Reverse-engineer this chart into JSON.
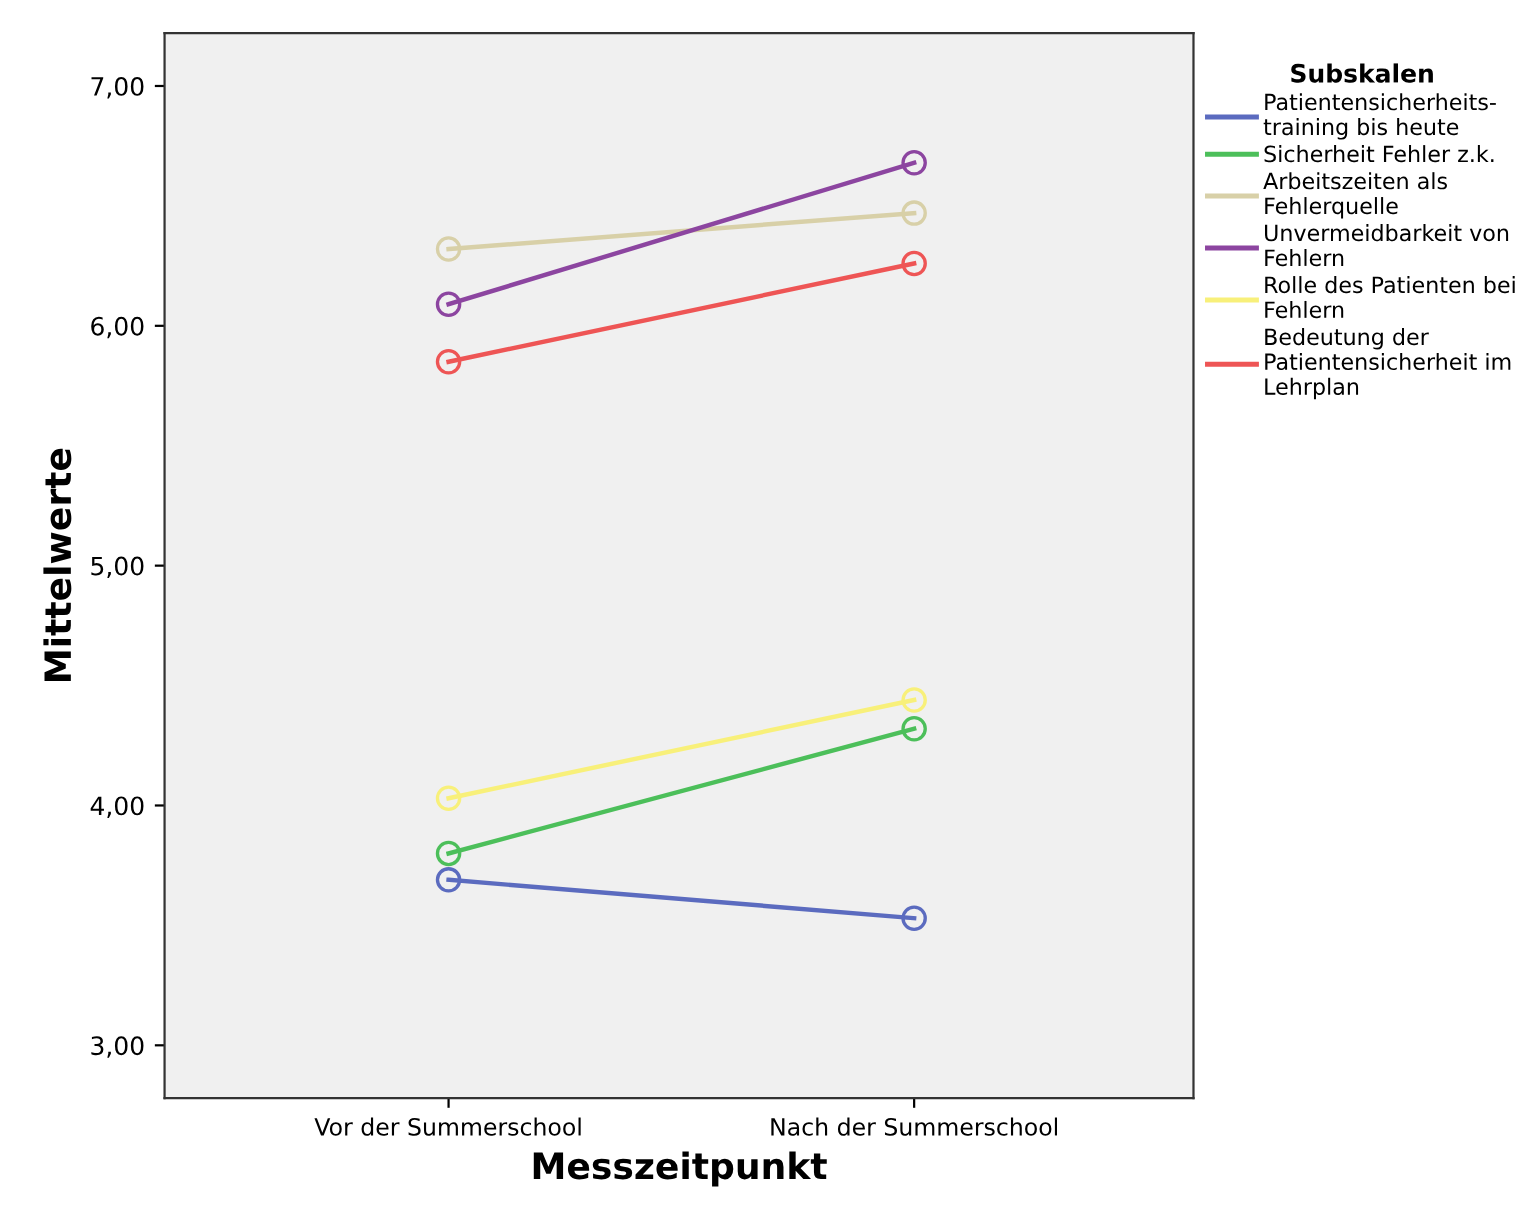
{
  "chart_data": {
    "type": "line",
    "xlabel": "Messzeitpunkt",
    "ylabel": "Mittelwerte",
    "legend_title": "Subskalen",
    "categories": [
      "Vor der Summerschool",
      "Nach der Summerschool"
    ],
    "series": [
      {
        "name": "Patientensicherheits-\ntraining bis heute",
        "color": "#5b6bbf",
        "values": [
          3.69,
          3.53
        ]
      },
      {
        "name": "Sicherheit Fehler z.k.",
        "color": "#4cbf5a",
        "values": [
          3.8,
          4.32
        ]
      },
      {
        "name": "Arbeitszeiten als\nFehlerquelle",
        "color": "#d8d0a8",
        "values": [
          6.32,
          6.47
        ]
      },
      {
        "name": "Unvermeidbarkeit von\nFehlern",
        "color": "#8c45a0",
        "values": [
          6.09,
          6.68
        ]
      },
      {
        "name": "Rolle des Patienten bei\nFehlern",
        "color": "#f8f07a",
        "values": [
          4.03,
          4.44
        ]
      },
      {
        "name": "Bedeutung der\nPatientensicherheit im\nLehrplan",
        "color": "#ee5555",
        "values": [
          5.85,
          6.26
        ]
      }
    ],
    "ylim": [
      2.78,
      7.22
    ],
    "yticks": [
      {
        "value": 3,
        "label": "3,00"
      },
      {
        "value": 4,
        "label": "4,00"
      },
      {
        "value": 5,
        "label": "5,00"
      },
      {
        "value": 6,
        "label": "6,00"
      },
      {
        "value": 7,
        "label": "7,00"
      }
    ],
    "marker": "circle",
    "line_style": "solid",
    "grid": false,
    "legend": "right"
  }
}
